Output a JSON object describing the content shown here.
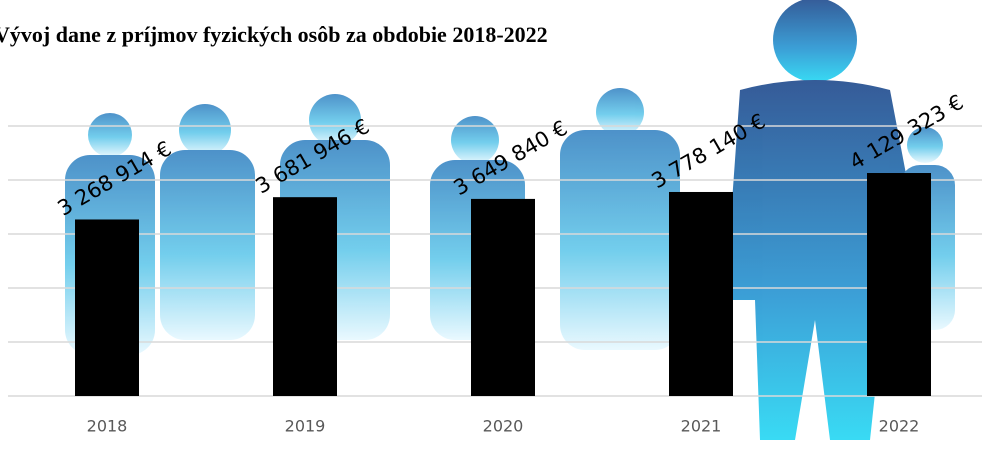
{
  "chart_data": {
    "type": "bar",
    "title": "Vývoj dane z príjmov fyzických osôb za obdobie 2018-2022",
    "categories": [
      "2018",
      "2019",
      "2020",
      "2021",
      "2022"
    ],
    "values": [
      3268914,
      3681946,
      3649840,
      3778140,
      4129323
    ],
    "value_labels": [
      "3 268 914 €",
      "3 681 946 €",
      "3 649 840 €",
      "3 778 140 €",
      "4 129 323 €"
    ],
    "color": "#000000",
    "ylim": [
      0,
      5000000
    ],
    "yticks": [
      0,
      1000000,
      2000000,
      3000000,
      4000000,
      5000000
    ],
    "grid": true
  }
}
